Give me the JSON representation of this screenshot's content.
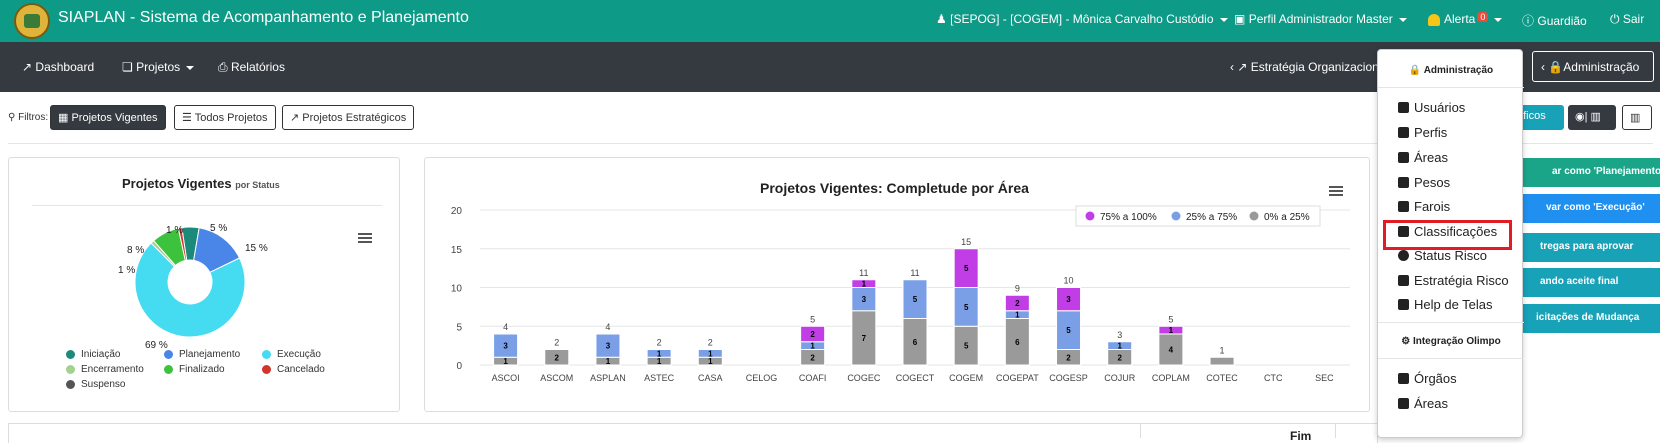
{
  "topbar": {
    "title": "SIAPLAN - Sistema de Acompanhamento e Planejamento",
    "user": "[SEPOG] - [COGEM] - Mônica Carvalho Custódio",
    "profile": "Perfil Administrador Master",
    "alert": "Alerta",
    "alert_count": "0",
    "guardiao": "Guardião",
    "sair": "Sair"
  },
  "navbar": {
    "dashboard": "Dashboard",
    "projetos": "Projetos",
    "relatorios": "Relatórios",
    "estrategia": "Estratégia Organizacion",
    "administracao": "Administração"
  },
  "filters": {
    "label": "Filtros:",
    "vigentes": "Projetos Vigentes",
    "todos": "Todos Projetos",
    "estrategicos": "Projetos Estratégicos"
  },
  "right_buttons": {
    "graficos": "áficos",
    "icon_btn": "| ",
    "planejamento": "ar como 'Planejamento'",
    "execucao": "var como 'Execução'",
    "entregas": "tregas para aprovar",
    "aceite": "ando aceite final",
    "mudanca": "icitações de Mudança"
  },
  "pie_card": {
    "title": "Projetos Vigentes",
    "subtitle": "por Status",
    "labels": {
      "l1": "1 %",
      "l5": "5 %",
      "l8": "8 %",
      "l15": "15 %",
      "l1b": "1 %",
      "l69": "69 %"
    },
    "legend": [
      "Iniciação",
      "Planejamento",
      "Execução",
      "Encerramento",
      "Finalizado",
      "Cancelado",
      "Suspenso"
    ],
    "colors": [
      "#1b8a7a",
      "#4a86e8",
      "#45dbf0",
      "#a3d18f",
      "#3cc23c",
      "#d2352b",
      "#555555"
    ]
  },
  "bar_card": {
    "title": "Projetos Vigentes: Completude por Área",
    "legend": [
      "75% a 100%",
      "25% a 75%",
      "0% a 25%"
    ]
  },
  "chart_data": {
    "type": "bar",
    "title": "Projetos Vigentes: Completude por Área",
    "categories": [
      "ASCOI",
      "ASCOM",
      "ASPLAN",
      "ASTEC",
      "CASA",
      "CELOG",
      "COAFI",
      "COGEC",
      "COGECT",
      "COGEM",
      "COGEPAT",
      "COGESP",
      "COJUR",
      "COPLAM",
      "COTEC",
      "CTC",
      "SEC"
    ],
    "series": [
      {
        "name": "0% a 25%",
        "color": "#9a9a9a",
        "values": [
          1,
          2,
          1,
          1,
          1,
          0,
          2,
          7,
          6,
          5,
          6,
          2,
          2,
          4,
          1,
          0,
          0
        ]
      },
      {
        "name": "25% a 75%",
        "color": "#7b9fe6",
        "values": [
          3,
          0,
          3,
          1,
          1,
          0,
          1,
          3,
          5,
          5,
          1,
          5,
          1,
          0,
          0,
          0,
          0
        ]
      },
      {
        "name": "75% a 100%",
        "color": "#c13ee6",
        "values": [
          0,
          0,
          0,
          0,
          0,
          0,
          2,
          1,
          0,
          5,
          2,
          3,
          0,
          1,
          0,
          0,
          0
        ]
      }
    ],
    "totals": [
      4,
      2,
      4,
      2,
      2,
      0,
      5,
      11,
      11,
      15,
      9,
      10,
      3,
      5,
      1,
      0,
      0
    ],
    "ylim": [
      0,
      20
    ],
    "yticks": [
      0,
      5,
      10,
      15,
      20
    ],
    "legend_position": "top-right"
  },
  "pie_data": {
    "type": "pie",
    "slices": [
      {
        "label": "Iniciação",
        "value": 5,
        "color": "#1b8a7a"
      },
      {
        "label": "Planejamento",
        "value": 15,
        "color": "#4a86e8"
      },
      {
        "label": "Execução",
        "value": 69,
        "color": "#45dbf0"
      },
      {
        "label": "Encerramento",
        "value": 1,
        "color": "#a3d18f"
      },
      {
        "label": "Finalizado",
        "value": 8,
        "color": "#3cc23c"
      },
      {
        "label": "Cancelado",
        "value": 1,
        "color": "#d2352b"
      }
    ]
  },
  "dropdown": {
    "header1": "Administração",
    "items1": [
      "Usuários",
      "Perfis",
      "Áreas",
      "Pesos",
      "Farois",
      "Classificações",
      "Status Risco",
      "Estratégia Risco",
      "Help de Telas"
    ],
    "header2": "Integração Olimpo",
    "items2": [
      "Órgãos",
      "Áreas"
    ]
  },
  "table": {
    "fim": "Fim"
  }
}
